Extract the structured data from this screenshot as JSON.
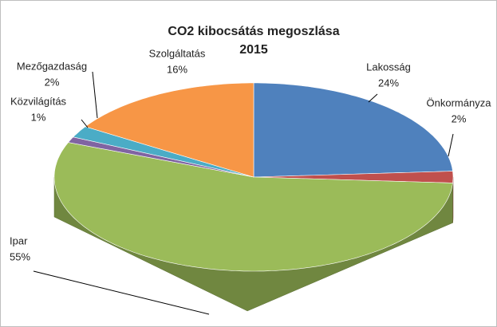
{
  "chart_data": {
    "type": "pie3d",
    "title": "CO2 kibocsátás megoszlása",
    "subtitle": "2015",
    "categories": [
      "Lakosság",
      "Önkormányza",
      "Ipar",
      "Közvilágítás",
      "Mezőgazdaság",
      "Szolgáltatás"
    ],
    "values": [
      24,
      2,
      55,
      1,
      2,
      16
    ],
    "value_labels": [
      "24%",
      "2%",
      "55%",
      "1%",
      "2%",
      "16%"
    ],
    "colors": [
      "#4f81bd",
      "#c0504d",
      "#9bbb59",
      "#8064a2",
      "#4bacc6",
      "#f79646"
    ]
  }
}
